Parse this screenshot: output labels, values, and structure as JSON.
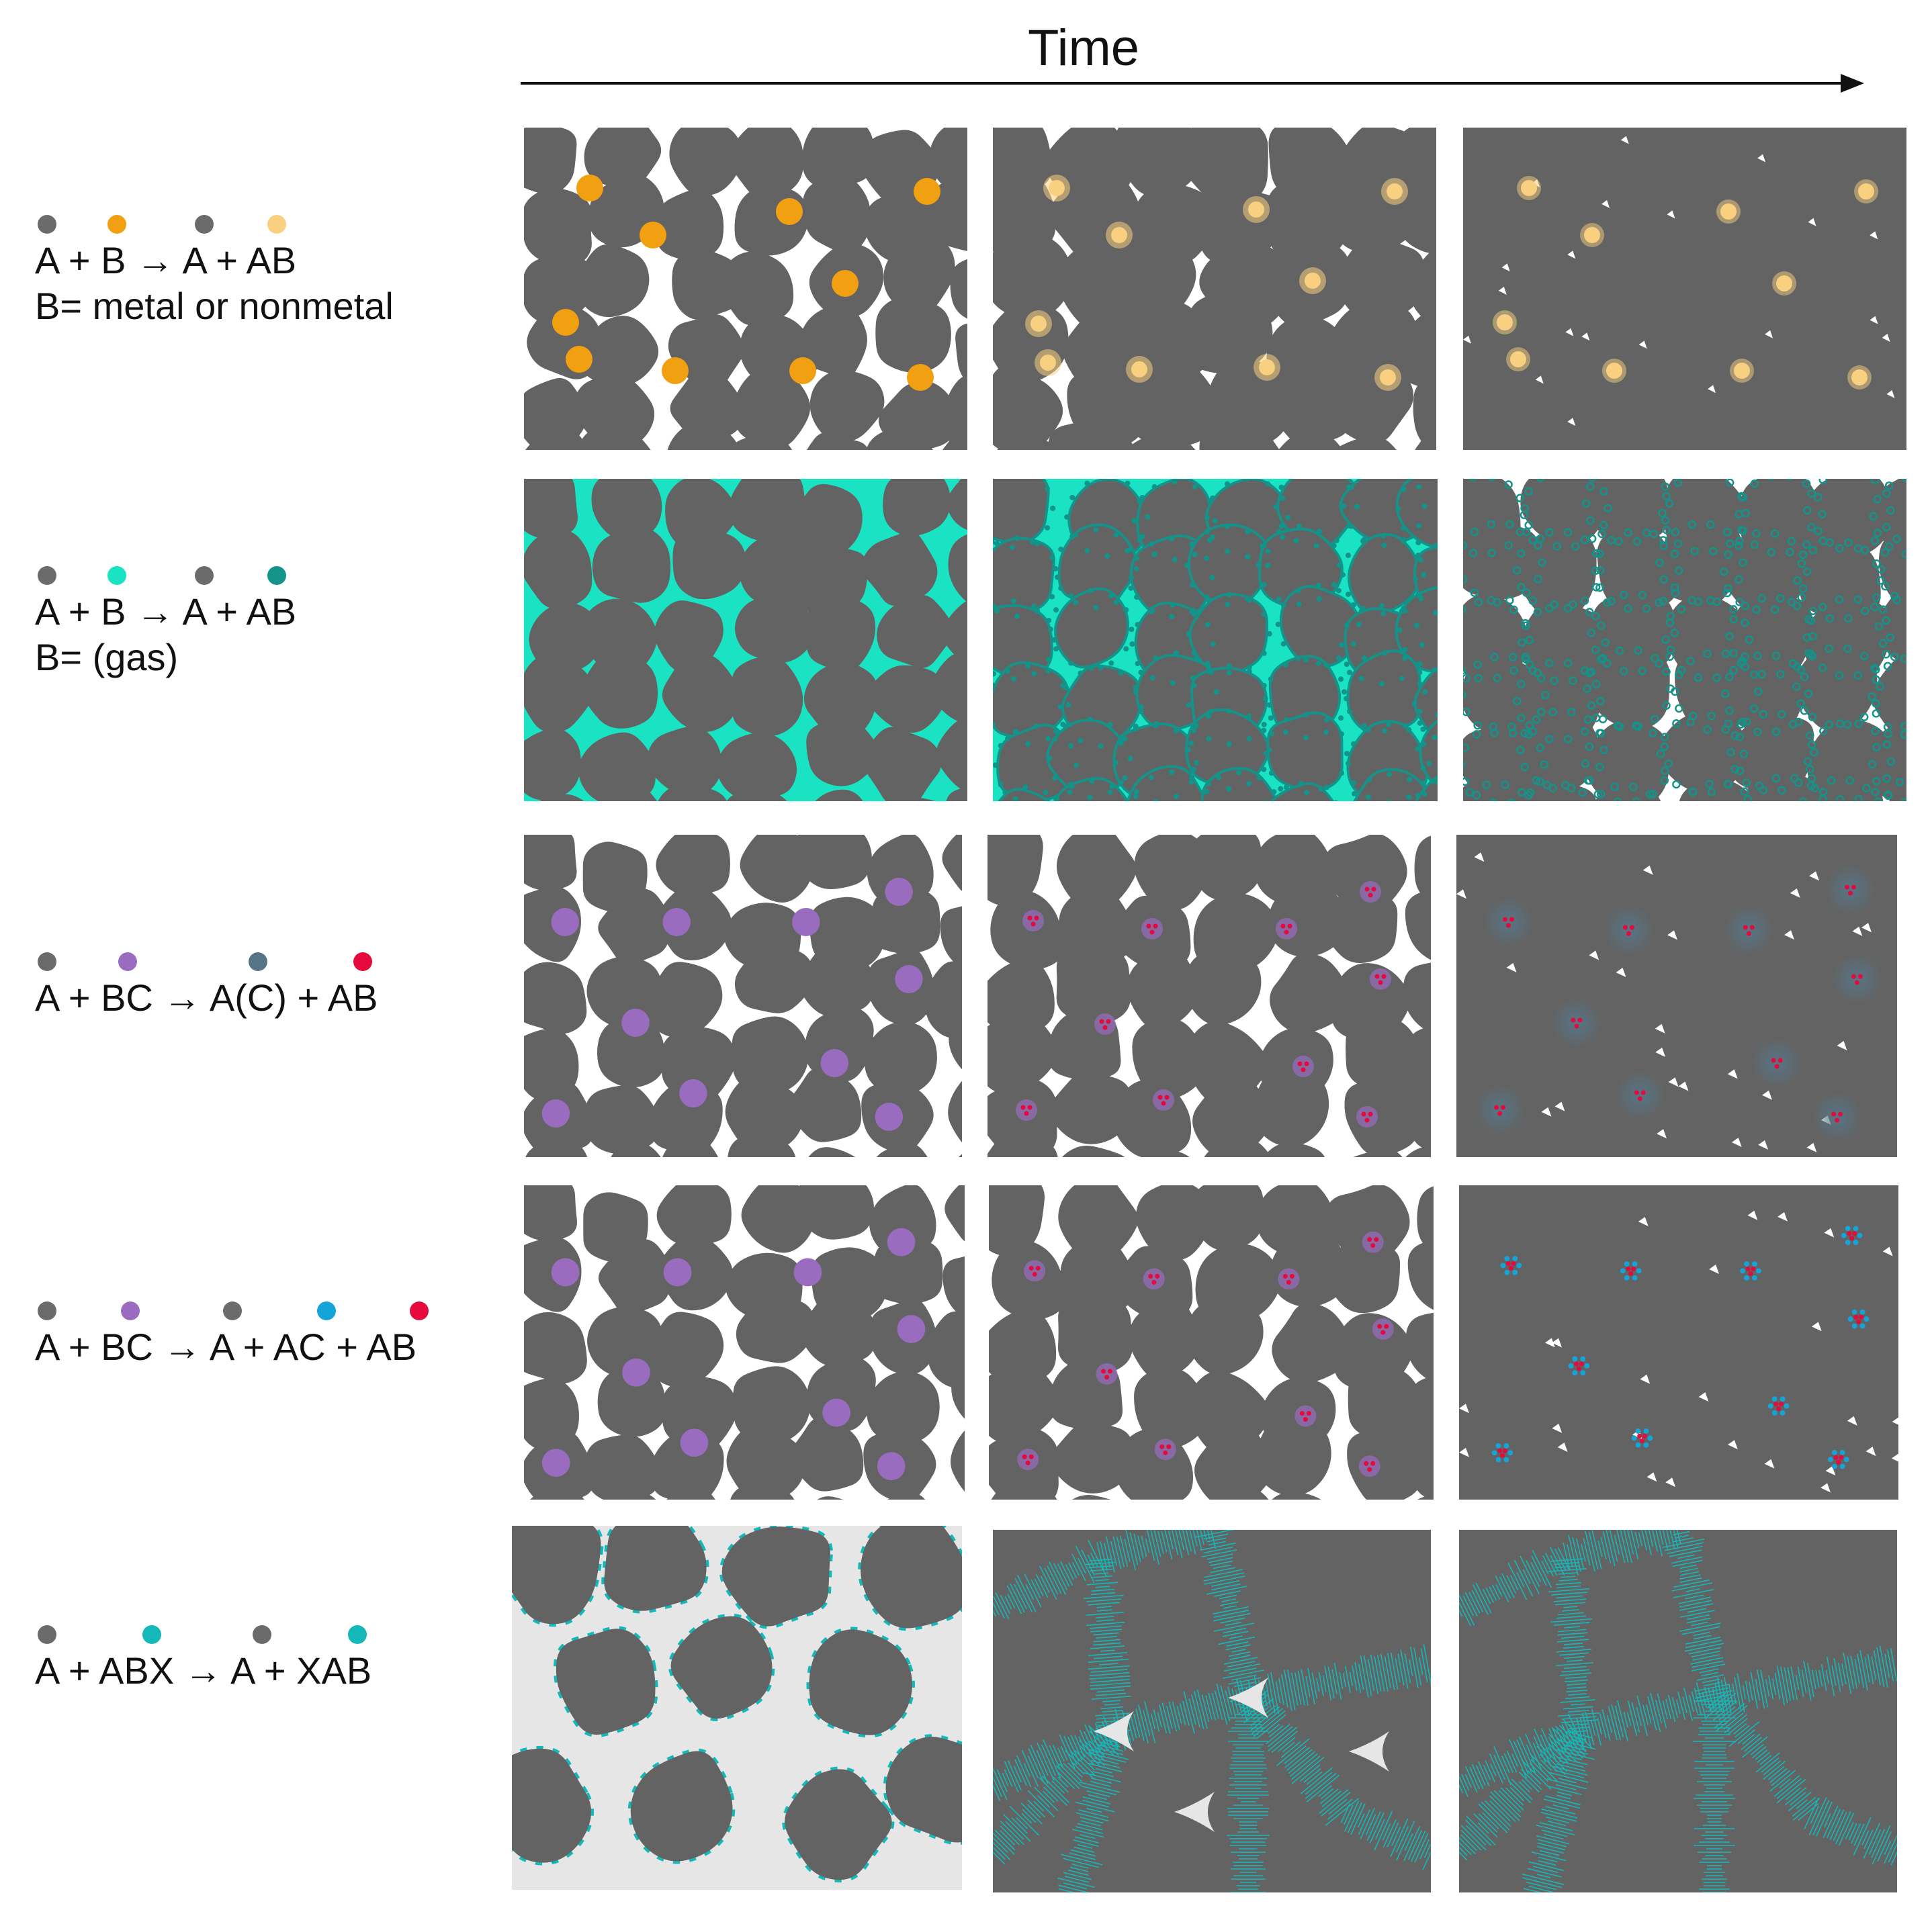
{
  "time_label": "Time",
  "colors": {
    "grain": "#636363",
    "void": "#ffffff",
    "A": "#6b6b6b",
    "orange_B": "#f0a010",
    "orange_AB": "#f8d080",
    "gas_B": "#19e3c3",
    "gas_AB": "#13938a",
    "purple_BC": "#9a6cc0",
    "slate_AC": "#567587",
    "red_AB": "#e60a3c",
    "blue_AC": "#14a4d8",
    "teal_XAB": "#14b8b8",
    "light_bg": "#e6e6e6"
  },
  "rows": [
    {
      "equation": "A + B → A + AB",
      "subtext": "B= metal or nonmetal",
      "dot_colors": [
        "#6b6b6b",
        "#f0a010",
        "#6b6b6b",
        "#f8d080"
      ]
    },
    {
      "equation": "A + B → A + AB",
      "subtext": "B= (gas)",
      "dot_colors": [
        "#6b6b6b",
        "#19e3c3",
        "#6b6b6b",
        "#13938a"
      ]
    },
    {
      "equation": "A + BC → A(C) + AB",
      "subtext": "",
      "dot_colors": [
        "#6b6b6b",
        "#9a6cc0",
        "#567587",
        "#e60a3c"
      ]
    },
    {
      "equation": "A + BC → A  + AC + AB",
      "subtext": "",
      "dot_colors": [
        "#6b6b6b",
        "#9a6cc0",
        "#6b6b6b",
        "#14a4d8",
        "#e60a3c"
      ]
    },
    {
      "equation": "A + ABX → A + XAB",
      "subtext": "",
      "dot_colors": [
        "#6b6b6b",
        "#14b8b8",
        "#6b6b6b",
        "#14b8b8"
      ]
    }
  ]
}
